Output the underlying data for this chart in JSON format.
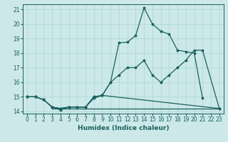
{
  "xlabel": "Humidex (Indice chaleur)",
  "bg_color": "#cce8e8",
  "grid_color": "#aad4d4",
  "line_color": "#1a6060",
  "xlim": [
    -0.5,
    23.5
  ],
  "ylim": [
    13.85,
    21.35
  ],
  "yticks": [
    14,
    15,
    16,
    17,
    18,
    19,
    20,
    21
  ],
  "xticks": [
    0,
    1,
    2,
    3,
    4,
    5,
    6,
    7,
    8,
    9,
    10,
    11,
    12,
    13,
    14,
    15,
    16,
    17,
    18,
    19,
    20,
    21,
    22,
    23
  ],
  "line_top_x": [
    0,
    1,
    2,
    3,
    4,
    5,
    6,
    7,
    8,
    9,
    10,
    11,
    12,
    13,
    14,
    15,
    16,
    17,
    18,
    19,
    20,
    21
  ],
  "line_top_y": [
    15.0,
    15.0,
    14.8,
    14.3,
    14.2,
    14.3,
    14.3,
    14.3,
    15.0,
    15.1,
    16.0,
    18.7,
    18.75,
    19.2,
    21.1,
    20.0,
    19.5,
    19.3,
    18.2,
    18.1,
    18.0,
    14.9
  ],
  "line_mid_x": [
    0,
    1,
    2,
    3,
    4,
    5,
    6,
    7,
    8,
    9,
    10,
    11,
    12,
    13,
    14,
    15,
    16,
    17,
    18,
    19,
    20,
    21,
    23
  ],
  "line_mid_y": [
    15.0,
    15.0,
    14.8,
    14.3,
    14.2,
    14.3,
    14.3,
    14.3,
    15.0,
    15.1,
    16.0,
    16.5,
    17.0,
    17.0,
    17.5,
    16.5,
    16.0,
    16.5,
    17.0,
    17.5,
    18.2,
    18.2,
    14.2
  ],
  "line_bot_x": [
    0,
    1,
    2,
    3,
    4,
    5,
    6,
    7,
    8,
    9,
    23
  ],
  "line_bot_y": [
    15.0,
    15.0,
    14.8,
    14.3,
    14.1,
    14.3,
    14.3,
    14.3,
    14.9,
    15.1,
    14.2
  ],
  "line_flat_x": [
    3,
    4,
    5,
    6,
    7,
    8,
    9,
    10,
    11,
    12,
    13,
    14,
    15,
    16,
    17,
    18,
    19,
    20,
    21,
    22,
    23
  ],
  "line_flat_y": [
    14.2,
    14.2,
    14.2,
    14.2,
    14.2,
    14.2,
    14.2,
    14.2,
    14.2,
    14.2,
    14.2,
    14.2,
    14.2,
    14.2,
    14.2,
    14.2,
    14.2,
    14.2,
    14.2,
    14.2,
    14.2
  ],
  "tick_fontsize": 5.5,
  "xlabel_fontsize": 6.5
}
